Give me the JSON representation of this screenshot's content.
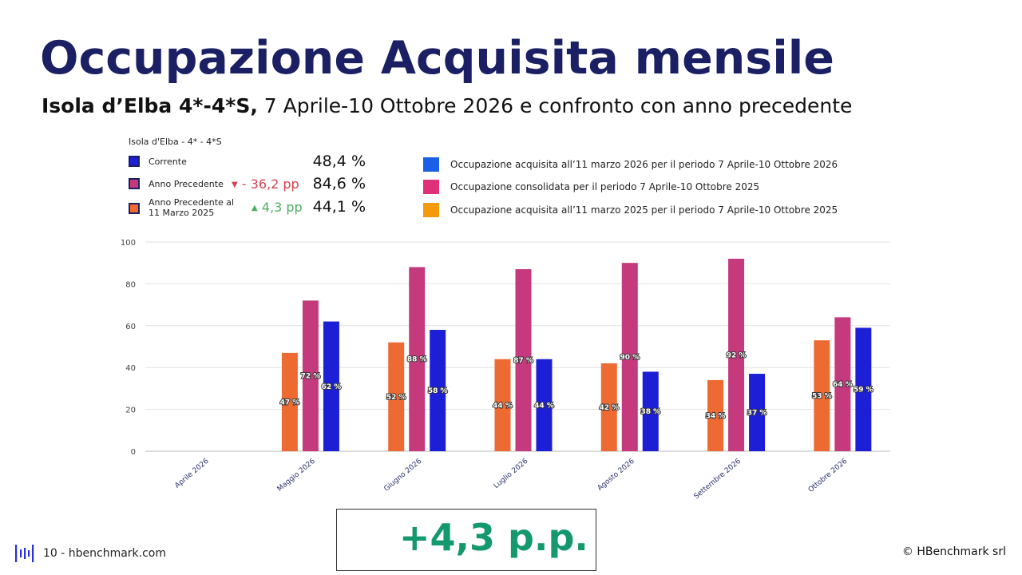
{
  "title": "Occupazione Acquisita mensile",
  "subtitle": {
    "bold": "Isola d’Elba 4*-4*S,",
    "rest": " 7 Aprile-10 Ottobre 2026 e confronto con anno precedente"
  },
  "kpi": {
    "header": "Isola d'Elba - 4* - 4*S",
    "rows": [
      {
        "label_lines": [
          "Corrente"
        ],
        "delta": "",
        "value": "48,4 %",
        "color": "#1c1fd6"
      },
      {
        "label_lines": [
          "Anno Precedente"
        ],
        "delta_arrow": "▼",
        "delta": "- 36,2 pp",
        "delta_color": "#d9414f",
        "value": "84,6 %",
        "color": "#c43a7c"
      },
      {
        "label_lines": [
          "Anno Precedente al",
          "11 Marzo 2025"
        ],
        "delta_arrow": "▲",
        "delta": "4,3 pp",
        "delta_color": "#4caf63",
        "value": "44,1 %",
        "color": "#ee6a33"
      }
    ]
  },
  "legend": [
    {
      "label": "Occupazione acquisita all’11  marzo 2026 per il periodo 7 Aprile-10 Ottobre 2026",
      "color": "#1a5fe6"
    },
    {
      "label": "Occupazione consolidata per il periodo 7 Aprile-10 Ottobre 2025",
      "color": "#e0307a"
    },
    {
      "label": "Occupazione acquisita all’11 marzo 2025 per il periodo 7 Aprile-10 Ottobre 2025",
      "color": "#f59a0a"
    }
  ],
  "chart_data": {
    "type": "bar",
    "categories": [
      "Aprile 2026",
      "Maggio 2026",
      "Giugno 2026",
      "Luglio 2026",
      "Agosto 2026",
      "Settembre 2026",
      "Ottobre 2026"
    ],
    "series": [
      {
        "values": [
          null,
          47,
          52,
          44,
          42,
          34,
          53
        ],
        "labels": [
          "",
          "47 %",
          "52 %",
          "44 %",
          "42 %",
          "34 %",
          "53 %"
        ],
        "color": "#ee6a33"
      },
      {
        "values": [
          null,
          72,
          88,
          87,
          90,
          92,
          64
        ],
        "labels": [
          "",
          "72 %",
          "88 %",
          "87 %",
          "90 %",
          "92 %",
          "64 %"
        ],
        "color": "#c43a7c"
      },
      {
        "values": [
          null,
          62,
          58,
          44,
          38,
          37,
          59
        ],
        "labels": [
          "",
          "62 %",
          "58 %",
          "44 %",
          "38 %",
          "37 %",
          "59 %"
        ],
        "color": "#1c1fd6"
      }
    ],
    "yticks": [
      "0",
      "20",
      "40",
      "60",
      "80",
      "100"
    ],
    "ylim": [
      0,
      100
    ],
    "grid": true
  },
  "highlight": "+4,3 p.p.",
  "footer": {
    "page": "10 - hbenchmark.com",
    "copyright": "© HBenchmark srl"
  },
  "icons": {
    "logo": "bar-signal-logo-icon"
  }
}
